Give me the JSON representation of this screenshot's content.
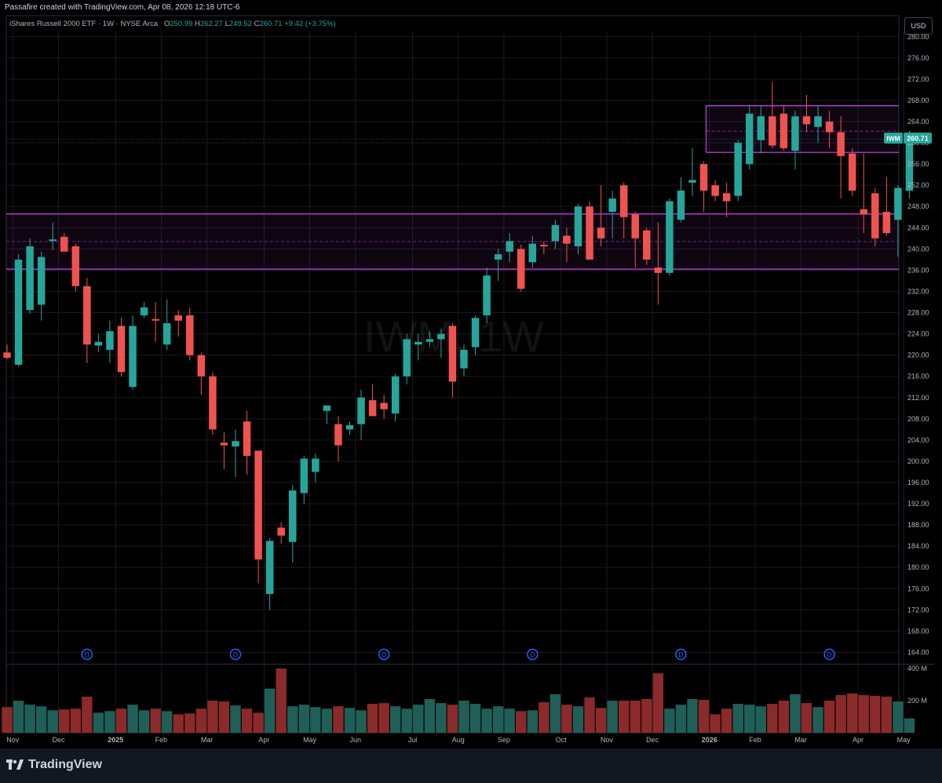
{
  "header": {
    "attribution": "Passafire created with TradingView.com, Apr 08, 2026 12:18 UTC-6"
  },
  "legend": {
    "instrument": "iShares Russell 2000 ETF · 1W · NYSE Arca",
    "o_label": "O",
    "o_value": "250.99",
    "h_label": "H",
    "h_value": "262.27",
    "l_label": "L",
    "l_value": "249.52",
    "c_label": "C",
    "c_value": "260.71",
    "change": "+9.42 (+3.75%)"
  },
  "currency_button": "USD",
  "watermark": "IWM, 1W",
  "price_tag": {
    "symbol": "IWM",
    "value": "260.71"
  },
  "footer": {
    "brand": "TradingView"
  },
  "colors": {
    "up": "#26a69a",
    "down": "#ef5350",
    "vol_up": "#1f5f58",
    "vol_down": "#8b2a2a",
    "zone": "#b93fd6",
    "grid": "#1b1b1f",
    "dividend": "#2962ff"
  },
  "chart_data": {
    "type": "candlestick",
    "title": "",
    "ylim": [
      162,
      281
    ],
    "price_ticks": [
      "164.00",
      "168.00",
      "172.00",
      "176.00",
      "180.00",
      "184.00",
      "188.00",
      "192.00",
      "196.00",
      "200.00",
      "204.00",
      "208.00",
      "212.00",
      "216.00",
      "220.00",
      "224.00",
      "228.00",
      "232.00",
      "236.00",
      "240.00",
      "244.00",
      "248.00",
      "252.00",
      "256.00",
      "260.00",
      "264.00",
      "268.00",
      "272.00",
      "276.00",
      "280.00"
    ],
    "volume_ticks": [
      {
        "label": "400 M",
        "value": 400
      },
      {
        "label": "200 M",
        "value": 200
      }
    ],
    "volume_max": 420,
    "x_labels": [
      {
        "label": "Nov",
        "week": 0.5
      },
      {
        "label": "Dec",
        "week": 4.5
      },
      {
        "label": "2025",
        "week": 9.5
      },
      {
        "label": "Feb",
        "week": 13.5
      },
      {
        "label": "Mar",
        "week": 17.5
      },
      {
        "label": "Apr",
        "week": 22.5
      },
      {
        "label": "May",
        "week": 26.5
      },
      {
        "label": "Jun",
        "week": 30.5
      },
      {
        "label": "Jul",
        "week": 35.5
      },
      {
        "label": "Aug",
        "week": 39.5
      },
      {
        "label": "Sep",
        "week": 43.5
      },
      {
        "label": "Oct",
        "week": 48.5
      },
      {
        "label": "Nov",
        "week": 52.5
      },
      {
        "label": "Dec",
        "week": 56.5
      },
      {
        "label": "2026",
        "week": 61.5
      },
      {
        "label": "Feb",
        "week": 65.5
      },
      {
        "label": "Mar",
        "week": 69.5
      },
      {
        "label": "Apr",
        "week": 74.5
      },
      {
        "label": "May",
        "week": 78.5
      }
    ],
    "dividend_weeks": [
      7,
      20,
      33,
      46,
      59,
      72
    ],
    "zones": [
      {
        "type": "box",
        "week_from": 61.2,
        "week_to": 80,
        "top": 267.0,
        "bottom": 258.2,
        "mid": 262.2
      },
      {
        "type": "band",
        "top": 246.6,
        "bottom": 236.2,
        "mid": 241.4
      }
    ],
    "candles": [
      {
        "o": 220.5,
        "h": 222.0,
        "l": 219.2,
        "c": 219.5,
        "v": 160
      },
      {
        "o": 218.2,
        "h": 239.0,
        "l": 217.8,
        "c": 238.0,
        "v": 200
      },
      {
        "o": 228.5,
        "h": 242.0,
        "l": 227.8,
        "c": 240.5,
        "v": 175
      },
      {
        "o": 229.5,
        "h": 239.5,
        "l": 226.5,
        "c": 238.5,
        "v": 165
      },
      {
        "o": 241.5,
        "h": 245.0,
        "l": 239.8,
        "c": 241.8,
        "v": 140
      },
      {
        "o": 242.3,
        "h": 243.0,
        "l": 239.5,
        "c": 239.5,
        "v": 145
      },
      {
        "o": 240.5,
        "h": 241.0,
        "l": 232.0,
        "c": 233.0,
        "v": 150
      },
      {
        "o": 233.0,
        "h": 234.5,
        "l": 218.5,
        "c": 222.0,
        "v": 225
      },
      {
        "o": 221.8,
        "h": 224.0,
        "l": 220.6,
        "c": 222.5,
        "v": 125
      },
      {
        "o": 221.0,
        "h": 226.5,
        "l": 218.5,
        "c": 224.5,
        "v": 135
      },
      {
        "o": 225.5,
        "h": 227.0,
        "l": 216.0,
        "c": 216.8,
        "v": 150
      },
      {
        "o": 214.0,
        "h": 227.5,
        "l": 213.5,
        "c": 225.5,
        "v": 175
      },
      {
        "o": 227.5,
        "h": 230.0,
        "l": 227.0,
        "c": 229.0,
        "v": 140
      },
      {
        "o": 226.8,
        "h": 230.0,
        "l": 222.5,
        "c": 226.5,
        "v": 150
      },
      {
        "o": 222.0,
        "h": 230.5,
        "l": 221.0,
        "c": 226.0,
        "v": 135
      },
      {
        "o": 227.5,
        "h": 228.5,
        "l": 223.5,
        "c": 226.5,
        "v": 115
      },
      {
        "o": 227.5,
        "h": 229.0,
        "l": 219.0,
        "c": 220.0,
        "v": 120
      },
      {
        "o": 220.0,
        "h": 220.5,
        "l": 212.5,
        "c": 216.0,
        "v": 150
      },
      {
        "o": 216.0,
        "h": 216.8,
        "l": 205.0,
        "c": 206.0,
        "v": 200
      },
      {
        "o": 203.5,
        "h": 205.5,
        "l": 198.5,
        "c": 203.0,
        "v": 195
      },
      {
        "o": 202.8,
        "h": 206.0,
        "l": 197.0,
        "c": 203.8,
        "v": 170
      },
      {
        "o": 207.5,
        "h": 209.5,
        "l": 197.5,
        "c": 201.0,
        "v": 150
      },
      {
        "o": 202.0,
        "h": 202.0,
        "l": 177.0,
        "c": 181.5,
        "v": 125
      },
      {
        "o": 175.0,
        "h": 185.5,
        "l": 172.0,
        "c": 185.0,
        "v": 275
      },
      {
        "o": 187.5,
        "h": 188.5,
        "l": 184.5,
        "c": 186.0,
        "v": 400
      },
      {
        "o": 184.8,
        "h": 195.5,
        "l": 181.0,
        "c": 194.5,
        "v": 165
      },
      {
        "o": 194.0,
        "h": 201.0,
        "l": 192.0,
        "c": 200.5,
        "v": 175
      },
      {
        "o": 198.0,
        "h": 201.5,
        "l": 196.0,
        "c": 200.5,
        "v": 160
      },
      {
        "o": 209.5,
        "h": 210.5,
        "l": 207.0,
        "c": 210.5,
        "v": 150
      },
      {
        "o": 207.0,
        "h": 208.5,
        "l": 200.0,
        "c": 203.0,
        "v": 165
      },
      {
        "o": 206.0,
        "h": 207.5,
        "l": 205.0,
        "c": 206.8,
        "v": 155
      },
      {
        "o": 207.0,
        "h": 213.5,
        "l": 204.0,
        "c": 212.0,
        "v": 140
      },
      {
        "o": 211.5,
        "h": 214.5,
        "l": 208.5,
        "c": 208.5,
        "v": 180
      },
      {
        "o": 211.0,
        "h": 212.5,
        "l": 208.0,
        "c": 209.8,
        "v": 185
      },
      {
        "o": 209.0,
        "h": 216.5,
        "l": 207.5,
        "c": 216.0,
        "v": 165
      },
      {
        "o": 216.0,
        "h": 224.0,
        "l": 214.5,
        "c": 223.0,
        "v": 150
      },
      {
        "o": 222.0,
        "h": 224.0,
        "l": 219.0,
        "c": 222.5,
        "v": 175
      },
      {
        "o": 222.5,
        "h": 224.5,
        "l": 221.5,
        "c": 223.0,
        "v": 210
      },
      {
        "o": 223.0,
        "h": 225.0,
        "l": 219.5,
        "c": 224.0,
        "v": 185
      },
      {
        "o": 225.5,
        "h": 226.0,
        "l": 212.0,
        "c": 215.0,
        "v": 175
      },
      {
        "o": 217.5,
        "h": 222.0,
        "l": 216.0,
        "c": 221.0,
        "v": 200
      },
      {
        "o": 221.5,
        "h": 227.5,
        "l": 220.0,
        "c": 227.0,
        "v": 180
      },
      {
        "o": 227.5,
        "h": 236.5,
        "l": 226.0,
        "c": 235.0,
        "v": 150
      },
      {
        "o": 238.0,
        "h": 240.0,
        "l": 234.0,
        "c": 239.0,
        "v": 165
      },
      {
        "o": 239.5,
        "h": 243.0,
        "l": 237.5,
        "c": 241.5,
        "v": 150
      },
      {
        "o": 240.0,
        "h": 240.8,
        "l": 232.0,
        "c": 232.5,
        "v": 135
      },
      {
        "o": 237.5,
        "h": 242.5,
        "l": 236.5,
        "c": 241.0,
        "v": 140
      },
      {
        "o": 240.8,
        "h": 241.5,
        "l": 239.0,
        "c": 240.5,
        "v": 190
      },
      {
        "o": 241.5,
        "h": 245.5,
        "l": 240.0,
        "c": 244.5,
        "v": 240
      },
      {
        "o": 242.5,
        "h": 244.0,
        "l": 237.5,
        "c": 241.0,
        "v": 175
      },
      {
        "o": 240.5,
        "h": 248.5,
        "l": 239.0,
        "c": 248.0,
        "v": 165
      },
      {
        "o": 248.0,
        "h": 249.0,
        "l": 238.0,
        "c": 238.0,
        "v": 220
      },
      {
        "o": 244.0,
        "h": 252.0,
        "l": 240.5,
        "c": 242.0,
        "v": 155
      },
      {
        "o": 247.0,
        "h": 251.0,
        "l": 242.0,
        "c": 249.5,
        "v": 200
      },
      {
        "o": 252.0,
        "h": 252.5,
        "l": 242.0,
        "c": 246.0,
        "v": 200
      },
      {
        "o": 246.5,
        "h": 247.0,
        "l": 236.5,
        "c": 242.0,
        "v": 200
      },
      {
        "o": 243.5,
        "h": 244.0,
        "l": 237.0,
        "c": 238.0,
        "v": 210
      },
      {
        "o": 236.5,
        "h": 245.0,
        "l": 229.5,
        "c": 235.5,
        "v": 370
      },
      {
        "o": 235.5,
        "h": 249.5,
        "l": 235.0,
        "c": 249.0,
        "v": 150
      },
      {
        "o": 245.5,
        "h": 253.5,
        "l": 245.0,
        "c": 251.0,
        "v": 175
      },
      {
        "o": 252.5,
        "h": 259.0,
        "l": 250.0,
        "c": 253.0,
        "v": 210
      },
      {
        "o": 256.0,
        "h": 256.5,
        "l": 247.0,
        "c": 251.0,
        "v": 205
      },
      {
        "o": 252.0,
        "h": 253.0,
        "l": 249.0,
        "c": 250.0,
        "v": 115
      },
      {
        "o": 250.5,
        "h": 252.5,
        "l": 246.0,
        "c": 249.0,
        "v": 150
      },
      {
        "o": 250.0,
        "h": 260.5,
        "l": 249.0,
        "c": 260.0,
        "v": 180
      },
      {
        "o": 256.0,
        "h": 267.0,
        "l": 255.0,
        "c": 265.5,
        "v": 175
      },
      {
        "o": 260.5,
        "h": 267.0,
        "l": 258.0,
        "c": 265.0,
        "v": 165
      },
      {
        "o": 265.0,
        "h": 271.5,
        "l": 259.0,
        "c": 259.5,
        "v": 180
      },
      {
        "o": 265.5,
        "h": 267.0,
        "l": 258.5,
        "c": 259.0,
        "v": 200
      },
      {
        "o": 258.5,
        "h": 266.0,
        "l": 255.0,
        "c": 265.0,
        "v": 240
      },
      {
        "o": 265.0,
        "h": 269.0,
        "l": 262.0,
        "c": 263.5,
        "v": 185
      },
      {
        "o": 263.0,
        "h": 267.0,
        "l": 260.0,
        "c": 265.0,
        "v": 160
      },
      {
        "o": 264.0,
        "h": 266.0,
        "l": 259.0,
        "c": 262.0,
        "v": 200
      },
      {
        "o": 262.0,
        "h": 265.0,
        "l": 249.5,
        "c": 257.5,
        "v": 235
      },
      {
        "o": 258.0,
        "h": 259.0,
        "l": 250.0,
        "c": 251.0,
        "v": 245
      },
      {
        "o": 247.5,
        "h": 258.0,
        "l": 243.0,
        "c": 246.5,
        "v": 235
      },
      {
        "o": 250.5,
        "h": 251.5,
        "l": 240.5,
        "c": 242.0,
        "v": 230
      },
      {
        "o": 247.0,
        "h": 253.5,
        "l": 242.5,
        "c": 243.0,
        "v": 225
      },
      {
        "o": 245.5,
        "h": 252.0,
        "l": 238.5,
        "c": 251.5,
        "v": 195
      },
      {
        "o": 250.99,
        "h": 262.27,
        "l": 249.52,
        "c": 260.71,
        "v": 90
      }
    ]
  }
}
